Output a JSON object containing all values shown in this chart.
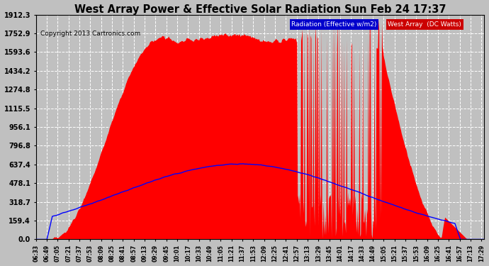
{
  "title": "West Array Power & Effective Solar Radiation Sun Feb 24 17:37",
  "copyright": "Copyright 2013 Cartronics.com",
  "legend_radiation": "Radiation (Effective w/m2)",
  "legend_west": "West Array  (DC Watts)",
  "ymax": 1912.3,
  "yticks": [
    0.0,
    159.4,
    318.7,
    478.1,
    637.4,
    796.8,
    956.1,
    1115.5,
    1274.8,
    1434.2,
    1593.6,
    1752.9,
    1912.3
  ],
  "background_color": "#c0c0c0",
  "plot_bg": "#c0c0c0",
  "grid_color": "white",
  "radiation_color": "#0000ff",
  "west_array_color": "#ff0000",
  "legend_radiation_bg": "#0000cc",
  "legend_west_bg": "#cc0000"
}
